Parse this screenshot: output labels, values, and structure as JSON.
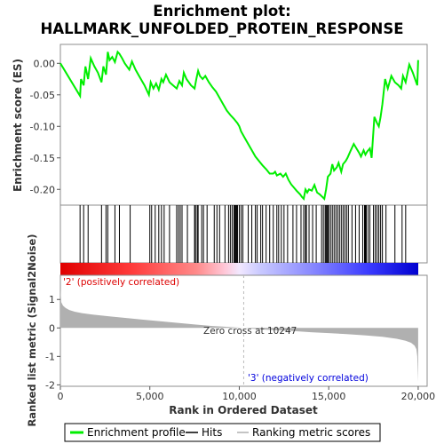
{
  "chart_data": {
    "type": "line",
    "title_line1": "Enrichment plot:",
    "title_line2": "HALLMARK_UNFOLDED_PROTEIN_RESPONSE",
    "es_panel": {
      "ylabel": "Enrichment score (ES)",
      "ylim": [
        -0.225,
        0.03
      ],
      "yticks": [
        0.0,
        -0.05,
        -0.1,
        -0.15,
        -0.2
      ],
      "ytick_labels": [
        "0.00",
        "-0.05",
        "-0.10",
        "-0.15",
        "-0.20"
      ],
      "xlim": [
        0,
        20500
      ],
      "line_color": "#00ee00",
      "series": [
        {
          "name": "Enrichment profile",
          "x": [
            0,
            1100,
            1150,
            1300,
            1400,
            1550,
            1700,
            1900,
            2100,
            2300,
            2400,
            2550,
            2650,
            2750,
            2900,
            3050,
            3200,
            3300,
            3450,
            3600,
            3850,
            4000,
            4200,
            4400,
            4700,
            4950,
            5050,
            5200,
            5350,
            5500,
            5650,
            5750,
            5900,
            6100,
            6300,
            6500,
            6650,
            6800,
            6900,
            7050,
            7300,
            7500,
            7600,
            7700,
            7800,
            7950,
            8100,
            8300,
            8500,
            8700,
            8900,
            9100,
            9300,
            9500,
            9700,
            9900,
            10000,
            10100,
            10300,
            10500,
            10700,
            10900,
            11100,
            11300,
            11500,
            11700,
            11900,
            12000,
            12100,
            12300,
            12450,
            12600,
            12750,
            12900,
            13050,
            13200,
            13400,
            13500,
            13600,
            13700,
            13800,
            13900,
            14050,
            14200,
            14350,
            14500,
            14650,
            14750,
            14850,
            14950,
            15100,
            15200,
            15300,
            15450,
            15550,
            15700,
            15800,
            15950,
            16050,
            16200,
            16400,
            16550,
            16700,
            16800,
            16950,
            17050,
            17150,
            17300,
            17400,
            17550,
            17700,
            17800,
            17900,
            18000,
            18150,
            18300,
            18500,
            18700,
            18900,
            19050,
            19150,
            19300,
            19500,
            19700,
            19950,
            20000
          ],
          "values": [
            0.0,
            -0.052,
            -0.025,
            -0.035,
            -0.005,
            -0.025,
            0.008,
            -0.005,
            -0.015,
            -0.03,
            -0.005,
            -0.018,
            0.018,
            0.005,
            0.01,
            0.002,
            0.018,
            0.015,
            0.008,
            0.0,
            -0.01,
            0.003,
            -0.01,
            -0.02,
            -0.035,
            -0.05,
            -0.03,
            -0.04,
            -0.032,
            -0.042,
            -0.025,
            -0.03,
            -0.018,
            -0.03,
            -0.035,
            -0.04,
            -0.028,
            -0.035,
            -0.015,
            -0.025,
            -0.035,
            -0.04,
            -0.025,
            -0.012,
            -0.02,
            -0.025,
            -0.02,
            -0.03,
            -0.038,
            -0.045,
            -0.055,
            -0.065,
            -0.075,
            -0.082,
            -0.088,
            -0.095,
            -0.1,
            -0.108,
            -0.118,
            -0.128,
            -0.138,
            -0.148,
            -0.155,
            -0.162,
            -0.168,
            -0.175,
            -0.175,
            -0.172,
            -0.178,
            -0.175,
            -0.18,
            -0.175,
            -0.185,
            -0.192,
            -0.197,
            -0.202,
            -0.208,
            -0.212,
            -0.215,
            -0.2,
            -0.205,
            -0.2,
            -0.202,
            -0.193,
            -0.205,
            -0.208,
            -0.212,
            -0.215,
            -0.2,
            -0.18,
            -0.175,
            -0.16,
            -0.17,
            -0.165,
            -0.158,
            -0.172,
            -0.16,
            -0.155,
            -0.15,
            -0.14,
            -0.128,
            -0.135,
            -0.142,
            -0.148,
            -0.138,
            -0.145,
            -0.14,
            -0.135,
            -0.15,
            -0.085,
            -0.095,
            -0.1,
            -0.085,
            -0.065,
            -0.025,
            -0.04,
            -0.02,
            -0.03,
            -0.035,
            -0.04,
            -0.02,
            -0.03,
            -0.002,
            -0.015,
            -0.035,
            0.005
          ]
        }
      ]
    },
    "hits_panel": {
      "legend_name": "Hits",
      "positions": [
        1100,
        1300,
        1550,
        2300,
        2550,
        2650,
        3050,
        3300,
        3900,
        5000,
        5100,
        5300,
        5500,
        5650,
        5800,
        6100,
        6500,
        6600,
        6700,
        6800,
        7100,
        7500,
        7550,
        7650,
        7700,
        7900,
        8000,
        8200,
        8600,
        8750,
        8900,
        9200,
        9400,
        9500,
        9600,
        9700,
        9750,
        9800,
        9850,
        9900,
        10000,
        10100,
        10200,
        10500,
        10700,
        10900,
        11000,
        11200,
        11300,
        11500,
        11700,
        11900,
        12100,
        12200,
        12350,
        12500,
        12700,
        13000,
        13200,
        13450,
        13600,
        13700,
        13750,
        13900,
        14100,
        14300,
        14600,
        14700,
        14800,
        14850,
        14900,
        14950,
        15000,
        15100,
        15200,
        15300,
        15400,
        15500,
        15600,
        15700,
        15800,
        15900,
        16000,
        16100,
        16300,
        16500,
        16700,
        16900,
        17000,
        17050,
        17100,
        17200,
        17300,
        17500,
        17600,
        17700,
        17800,
        17900,
        18000,
        18200,
        18700,
        19100,
        19300
      ]
    },
    "rank_panel": {
      "ylabel": "Ranked list metric (Signal2Noise)",
      "xlabel": "Rank in Ordered Dataset",
      "ylim": [
        -2.05,
        1.85
      ],
      "yticks": [
        1,
        0,
        -1,
        -2
      ],
      "ytick_labels": [
        "1",
        "0",
        "-1",
        "-2"
      ],
      "xticks": [
        0,
        5000,
        10000,
        15000,
        20000
      ],
      "xtick_labels": [
        "0",
        "5,000",
        "10,000",
        "15,000",
        "20,000"
      ],
      "xlim": [
        0,
        20500
      ],
      "metric_x": [
        0,
        50,
        150,
        300,
        500,
        800,
        1200,
        1800,
        2500,
        3500,
        4500,
        5500,
        6500,
        7500,
        8500,
        9500,
        10247,
        11000,
        12000,
        13000,
        14000,
        15000,
        16000,
        17000,
        18000,
        18800,
        19300,
        19600,
        19800,
        19900,
        19950,
        20000
      ],
      "metric_values": [
        1.4,
        0.9,
        0.78,
        0.7,
        0.63,
        0.57,
        0.52,
        0.47,
        0.42,
        0.36,
        0.3,
        0.24,
        0.18,
        0.12,
        0.07,
        0.03,
        0.0,
        -0.04,
        -0.08,
        -0.11,
        -0.15,
        -0.18,
        -0.22,
        -0.26,
        -0.31,
        -0.38,
        -0.45,
        -0.52,
        -0.62,
        -0.75,
        -1.0,
        -1.9
      ],
      "zero_cross_label": "Zero cross at 10247",
      "zero_cross_x": 10247,
      "pos_label": "'2' (positively correlated)",
      "neg_label": "'3' (negatively correlated)",
      "pos_label_color": "#dd0000",
      "neg_label_color": "#0000dd",
      "fill_color": "#b0b0b0"
    },
    "legend": {
      "items": [
        {
          "name": "Enrichment profile",
          "color": "#00ee00"
        },
        {
          "name": "Hits",
          "color": "#000000"
        },
        {
          "name": "Ranking metric scores",
          "color": "#b0b0b0"
        }
      ]
    }
  }
}
